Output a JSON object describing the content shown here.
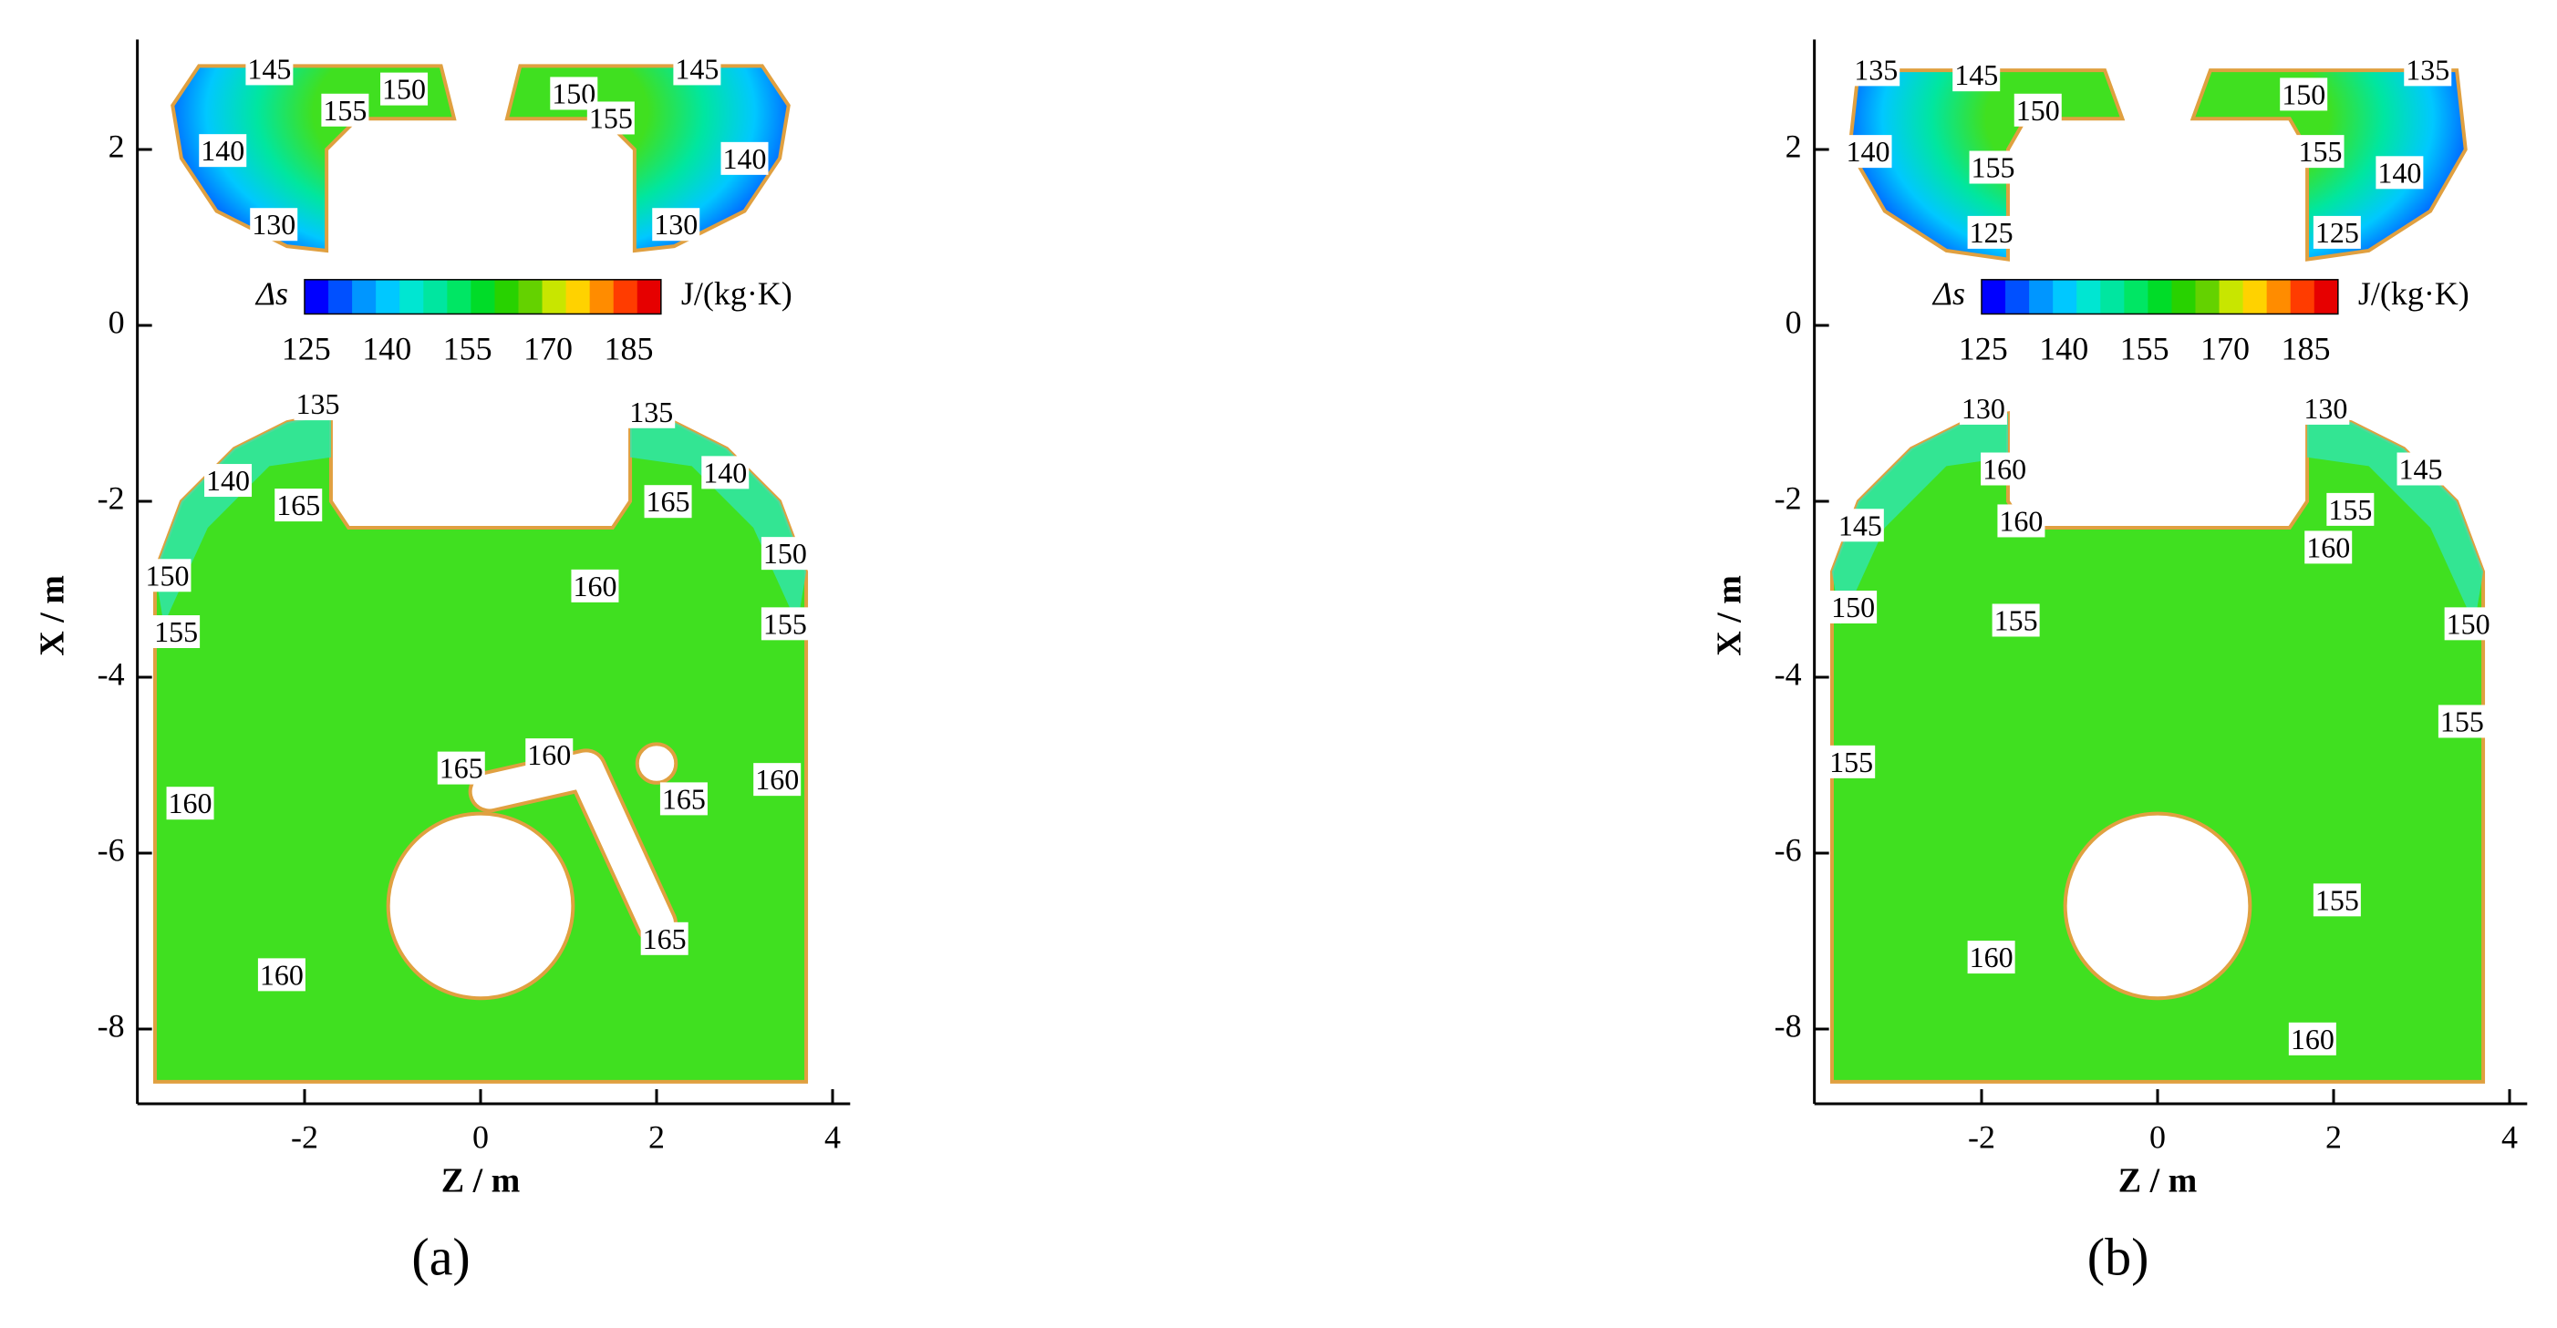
{
  "chart_data": [
    {
      "type": "contour",
      "panel_label": "(a)",
      "xlabel": "Z / m",
      "ylabel": "X / m",
      "xlim": [
        -3.9,
        4.2
      ],
      "ylim": [
        -8.85,
        3.25
      ],
      "xticks": [
        -2,
        0,
        2,
        4
      ],
      "yticks": [
        -8,
        -6,
        -4,
        -2,
        0,
        2
      ],
      "fill_color": "#40e020",
      "edge_color": "#e0a040",
      "colorbar": {
        "label": "Δs",
        "unit": "J/(kg·K)",
        "lim": [
          124.7,
          191
        ],
        "ticks": [
          125,
          140,
          155,
          170,
          185
        ],
        "colors": [
          "#0000ff",
          "#0050ff",
          "#0096ff",
          "#00c8ff",
          "#00e6d2",
          "#00e6a0",
          "#00e664",
          "#00dc28",
          "#28d200",
          "#64d200",
          "#c8e600",
          "#ffd200",
          "#ff8c00",
          "#ff3c00",
          "#e60000"
        ]
      },
      "contour_labels": [
        {
          "z": -2.4,
          "x": 2.88,
          "value": 145
        },
        {
          "z": -0.87,
          "x": 2.65,
          "value": 150
        },
        {
          "z": -1.54,
          "x": 2.41,
          "value": 155
        },
        {
          "z": -2.93,
          "x": 1.95,
          "value": 140
        },
        {
          "z": -2.35,
          "x": 1.11,
          "value": 130
        },
        {
          "z": 1.06,
          "x": 2.6,
          "value": 150
        },
        {
          "z": 2.46,
          "x": 2.88,
          "value": 145
        },
        {
          "z": 1.48,
          "x": 2.32,
          "value": 155
        },
        {
          "z": 3.0,
          "x": 1.86,
          "value": 140
        },
        {
          "z": 2.22,
          "x": 1.11,
          "value": 130
        },
        {
          "z": -1.85,
          "x": -0.93,
          "value": 135
        },
        {
          "z": -2.87,
          "x": -1.8,
          "value": 140
        },
        {
          "z": -2.07,
          "x": -2.08,
          "value": 165
        },
        {
          "z": -3.56,
          "x": -2.88,
          "value": 150
        },
        {
          "z": -3.46,
          "x": -3.52,
          "value": 155
        },
        {
          "z": -3.3,
          "x": -5.47,
          "value": 160
        },
        {
          "z": -2.26,
          "x": -7.42,
          "value": 160
        },
        {
          "z": 0.78,
          "x": -4.92,
          "value": 160
        },
        {
          "z": -0.22,
          "x": -5.07,
          "value": 165
        },
        {
          "z": 1.3,
          "x": -3.0,
          "value": 160
        },
        {
          "z": 1.94,
          "x": -1.02,
          "value": 135
        },
        {
          "z": 2.78,
          "x": -1.71,
          "value": 140
        },
        {
          "z": 2.13,
          "x": -2.04,
          "value": 165
        },
        {
          "z": 3.46,
          "x": -2.63,
          "value": 150
        },
        {
          "z": 3.46,
          "x": -3.43,
          "value": 155
        },
        {
          "z": 3.37,
          "x": -5.2,
          "value": 160
        },
        {
          "z": 2.31,
          "x": -5.42,
          "value": 165
        },
        {
          "z": 2.09,
          "x": -7.01,
          "value": 165
        }
      ]
    },
    {
      "type": "contour",
      "panel_label": "(b)",
      "xlabel": "Z / m",
      "ylabel": "X / m",
      "xlim": [
        -3.9,
        4.2
      ],
      "ylim": [
        -8.85,
        3.25
      ],
      "xticks": [
        -2,
        0,
        2,
        4
      ],
      "yticks": [
        -8,
        -6,
        -4,
        -2,
        0,
        2
      ],
      "fill_color": "#40e020",
      "edge_color": "#e0a040",
      "colorbar": {
        "label": "Δs",
        "unit": "J/(kg·K)",
        "lim": [
          124.7,
          191
        ],
        "ticks": [
          125,
          140,
          155,
          170,
          185
        ],
        "colors": [
          "#0000ff",
          "#0050ff",
          "#0096ff",
          "#00c8ff",
          "#00e6d2",
          "#00e6a0",
          "#00e664",
          "#00dc28",
          "#28d200",
          "#64d200",
          "#c8e600",
          "#ffd200",
          "#ff8c00",
          "#ff3c00",
          "#e60000"
        ]
      },
      "contour_labels": [
        {
          "z": -3.2,
          "x": 2.87,
          "value": 135
        },
        {
          "z": -2.06,
          "x": 2.81,
          "value": 145
        },
        {
          "z": -1.36,
          "x": 2.41,
          "value": 150
        },
        {
          "z": -3.29,
          "x": 1.94,
          "value": 140
        },
        {
          "z": -1.87,
          "x": 1.76,
          "value": 155
        },
        {
          "z": -1.89,
          "x": 1.02,
          "value": 125
        },
        {
          "z": 1.66,
          "x": 2.59,
          "value": 150
        },
        {
          "z": 3.07,
          "x": 2.87,
          "value": 135
        },
        {
          "z": 1.85,
          "x": 1.94,
          "value": 155
        },
        {
          "z": 2.75,
          "x": 1.7,
          "value": 140
        },
        {
          "z": 2.04,
          "x": 1.02,
          "value": 125
        },
        {
          "z": -1.98,
          "x": -0.98,
          "value": 130
        },
        {
          "z": -1.74,
          "x": -1.67,
          "value": 160
        },
        {
          "z": -1.55,
          "x": -2.26,
          "value": 160
        },
        {
          "z": -3.38,
          "x": -2.31,
          "value": 145
        },
        {
          "z": -3.46,
          "x": -3.24,
          "value": 150
        },
        {
          "z": -1.61,
          "x": -3.39,
          "value": 155
        },
        {
          "z": -3.48,
          "x": -5.0,
          "value": 155
        },
        {
          "z": -1.89,
          "x": -7.22,
          "value": 160
        },
        {
          "z": 1.91,
          "x": -0.98,
          "value": 130
        },
        {
          "z": 2.99,
          "x": -1.67,
          "value": 145
        },
        {
          "z": 2.19,
          "x": -2.13,
          "value": 155
        },
        {
          "z": 1.94,
          "x": -2.56,
          "value": 160
        },
        {
          "z": 3.53,
          "x": -3.43,
          "value": 150
        },
        {
          "z": 3.46,
          "x": -4.54,
          "value": 155
        },
        {
          "z": 2.04,
          "x": -6.57,
          "value": 155
        },
        {
          "z": 1.76,
          "x": -8.15,
          "value": 160
        }
      ]
    }
  ]
}
